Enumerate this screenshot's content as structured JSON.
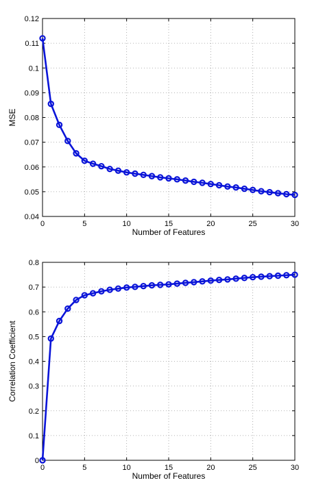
{
  "chart_data": [
    {
      "type": "line",
      "xlabel": "Number of Features",
      "ylabel": "MSE",
      "xlim": [
        0,
        30
      ],
      "ylim": [
        0.04,
        0.12
      ],
      "xticks": [
        0,
        5,
        10,
        15,
        20,
        25,
        30
      ],
      "yticks": [
        0.04,
        0.05,
        0.06,
        0.07,
        0.08,
        0.09,
        0.1,
        0.11,
        0.12
      ],
      "ytick_labels": [
        "0.04",
        "0.05",
        "0.06",
        "0.07",
        "0.08",
        "0.09",
        "0.1",
        "0.11",
        "0.12"
      ],
      "grid": true,
      "line_color": "#0a14d8",
      "marker": "circle",
      "x": [
        0,
        1,
        2,
        3,
        4,
        5,
        6,
        7,
        8,
        9,
        10,
        11,
        12,
        13,
        14,
        15,
        16,
        17,
        18,
        19,
        20,
        21,
        22,
        23,
        24,
        25,
        26,
        27,
        28,
        29,
        30
      ],
      "values": [
        0.112,
        0.0855,
        0.077,
        0.0705,
        0.0655,
        0.0625,
        0.0613,
        0.0603,
        0.0592,
        0.0585,
        0.0578,
        0.0573,
        0.0568,
        0.0563,
        0.0558,
        0.0554,
        0.055,
        0.0545,
        0.054,
        0.0536,
        0.0531,
        0.0526,
        0.0521,
        0.0517,
        0.0512,
        0.0507,
        0.0502,
        0.0498,
        0.0494,
        0.049,
        0.0487
      ]
    },
    {
      "type": "line",
      "xlabel": "Number of Features",
      "ylabel": "Correlation Coefficient",
      "xlim": [
        0,
        30
      ],
      "ylim": [
        0,
        0.8
      ],
      "xticks": [
        0,
        5,
        10,
        15,
        20,
        25,
        30
      ],
      "yticks": [
        0,
        0.1,
        0.2,
        0.3,
        0.4,
        0.5,
        0.6,
        0.7,
        0.8
      ],
      "ytick_labels": [
        "0",
        "0.1",
        "0.2",
        "0.3",
        "0.4",
        "0.5",
        "0.6",
        "0.7",
        "0.8"
      ],
      "grid": true,
      "line_color": "#0a14d8",
      "marker": "circle",
      "x": [
        0,
        1,
        2,
        3,
        4,
        5,
        6,
        7,
        8,
        9,
        10,
        11,
        12,
        13,
        14,
        15,
        16,
        17,
        18,
        19,
        20,
        21,
        22,
        23,
        24,
        25,
        26,
        27,
        28,
        29,
        30
      ],
      "values": [
        0.0,
        0.492,
        0.563,
        0.613,
        0.648,
        0.667,
        0.675,
        0.683,
        0.689,
        0.694,
        0.698,
        0.701,
        0.704,
        0.707,
        0.709,
        0.711,
        0.714,
        0.717,
        0.72,
        0.723,
        0.726,
        0.729,
        0.731,
        0.734,
        0.737,
        0.74,
        0.742,
        0.744,
        0.746,
        0.748,
        0.75
      ]
    }
  ]
}
